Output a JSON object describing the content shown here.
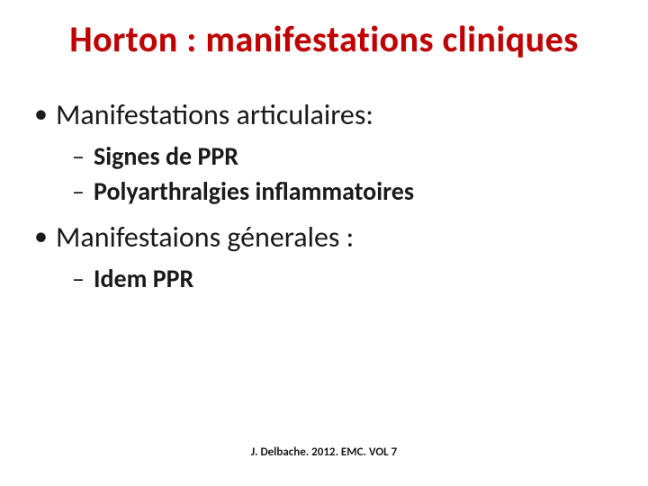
{
  "title": "Horton  : manifestations cliniques",
  "sections": {
    "s1": {
      "heading": "Manifestations articulaires:",
      "items": {
        "i1": "Signes de PPR",
        "i2": "Polyarthralgies inflammatoires"
      }
    },
    "s2": {
      "heading": "Manifestaions génerales :",
      "items": {
        "i1": "Idem PPR"
      }
    }
  },
  "footer": "J. Delbache. 2012. EMC. VOL 7",
  "style": {
    "title_color": "#c00000",
    "text_color": "#1a1a1a",
    "background": "#ffffff",
    "title_fontsize": 40,
    "l1_fontsize": 32,
    "l2_fontsize": 28,
    "footer_fontsize": 13
  }
}
